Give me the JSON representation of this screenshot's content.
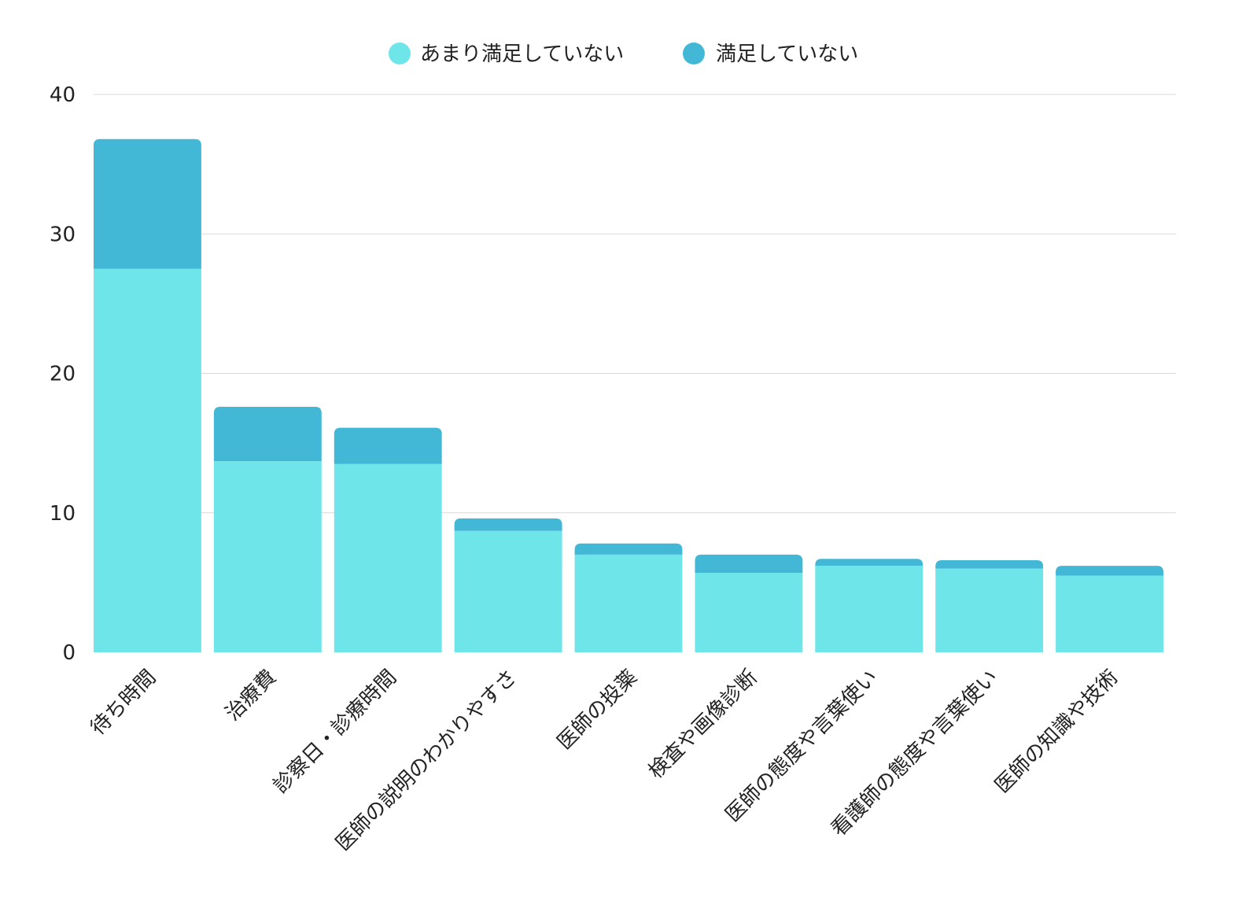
{
  "chart_data": {
    "type": "bar",
    "stacked": true,
    "categories": [
      "待ち時間",
      "治療費",
      "診察日・診療時間",
      "医師の説明のわかりやすさ",
      "医師の投薬",
      "検査や画像診断",
      "医師の態度や言葉使い",
      "看護師の態度や言葉使い",
      "医師の知識や技術"
    ],
    "series": [
      {
        "name": "あまり満足していない",
        "color": "#6ee5e8",
        "values": [
          27.5,
          13.7,
          13.5,
          8.7,
          7.0,
          5.7,
          6.2,
          6.0,
          5.5
        ]
      },
      {
        "name": "満足していない",
        "color": "#42b8d6",
        "values": [
          9.3,
          3.9,
          2.6,
          0.9,
          0.8,
          1.3,
          0.5,
          0.6,
          0.7
        ]
      }
    ],
    "yticks": [
      "0",
      "10",
      "20",
      "30",
      "40"
    ],
    "ylim": [
      0,
      40
    ],
    "grid": true,
    "legend_position": "top-center"
  }
}
